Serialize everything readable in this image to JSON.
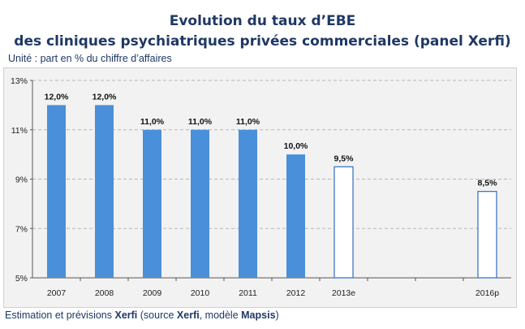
{
  "header": {
    "title_line1": "Evolution du taux d’EBE",
    "title_line2": "des cliniques psychiatriques privées commerciales (panel Xerfi)",
    "unit": "Unité : part en % du chiffre d’affaires"
  },
  "footer": {
    "part1": "Estimation et prévisions ",
    "brand1": "Xerfi",
    "part2": " (source ",
    "brand2": "Xerfi",
    "part3": ", modèle ",
    "brand3": "Mapsis",
    "part4": ")"
  },
  "colors": {
    "actual_bar": "#4a8fd9",
    "forecast_bar_fill": "#ffffff",
    "forecast_bar_stroke": "#2e6fbf",
    "gridline": "#b7b7b7",
    "title": "#1f3864"
  },
  "chart_data": {
    "type": "bar",
    "categories": [
      "2007",
      "2008",
      "2009",
      "2010",
      "2011",
      "2012",
      "2013e",
      "",
      "",
      "2016p"
    ],
    "values": [
      12.0,
      12.0,
      11.0,
      11.0,
      11.0,
      10.0,
      9.5,
      null,
      null,
      8.5
    ],
    "data_labels": [
      "12,0%",
      "12,0%",
      "11,0%",
      "11,0%",
      "11,0%",
      "10,0%",
      "9,5%",
      "",
      "",
      "8,5%"
    ],
    "forecast": [
      false,
      false,
      false,
      false,
      false,
      false,
      true,
      false,
      false,
      true
    ],
    "ylim": [
      5,
      13
    ],
    "yticks": [
      5,
      7,
      9,
      11,
      13
    ],
    "ytick_labels": [
      "5%",
      "7%",
      "9%",
      "11%",
      "13%"
    ],
    "grid": true
  }
}
